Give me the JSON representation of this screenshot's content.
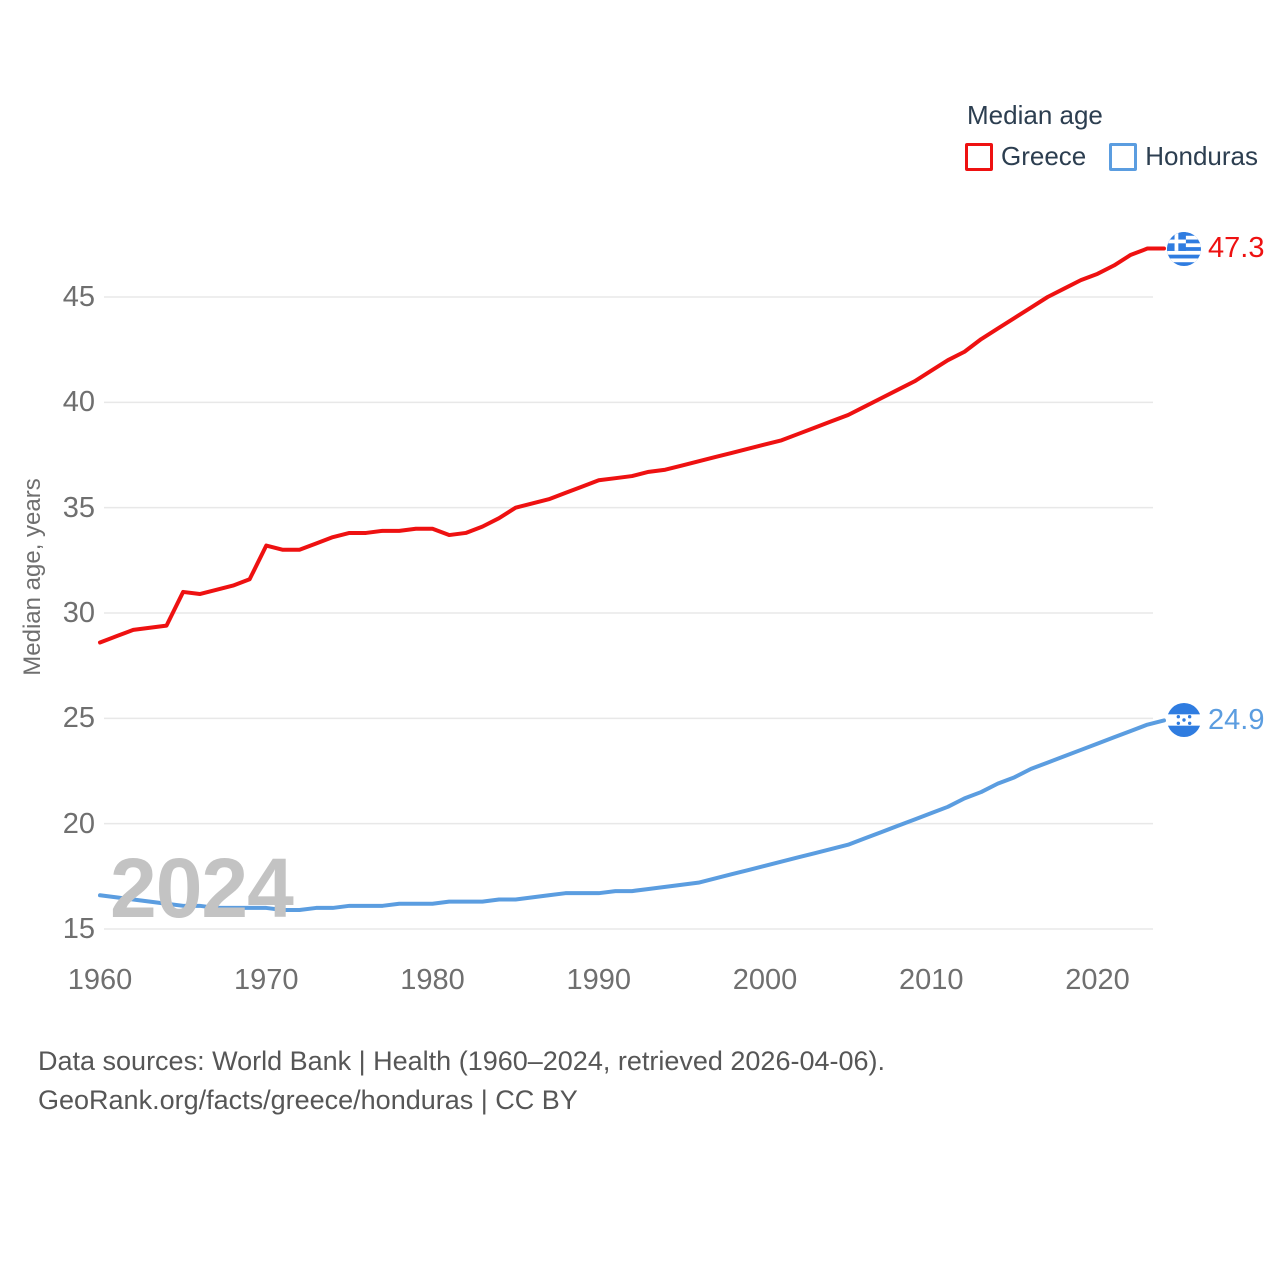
{
  "legend": {
    "title": "Median age",
    "items": [
      {
        "label": "Greece",
        "color": "#ee1111"
      },
      {
        "label": "Honduras",
        "color": "#5b9de0"
      }
    ]
  },
  "y_axis": {
    "title": "Median age, years",
    "ticks": [
      15,
      20,
      25,
      30,
      35,
      40,
      45
    ]
  },
  "x_axis": {
    "ticks": [
      1960,
      1970,
      1980,
      1990,
      2000,
      2010,
      2020
    ]
  },
  "watermark": "2024",
  "end_labels": [
    {
      "series": "Greece",
      "value": "47.3",
      "color": "#ee1111",
      "flag": "greece"
    },
    {
      "series": "Honduras",
      "value": "24.9",
      "color": "#5b9de0",
      "flag": "honduras"
    }
  ],
  "footer": {
    "line1": "Data sources: World Bank | Health (1960–2024, retrieved 2026-04-06).",
    "line2": "GeoRank.org/facts/greece/honduras | CC BY"
  },
  "chart_data": {
    "type": "line",
    "title": "Median age",
    "xlabel": "",
    "ylabel": "Median age, years",
    "xlim": [
      1960,
      2024
    ],
    "ylim": [
      15,
      47.5
    ],
    "grid": "horizontal",
    "legend_position": "top-right",
    "x": [
      1960,
      1961,
      1962,
      1963,
      1964,
      1965,
      1966,
      1967,
      1968,
      1969,
      1970,
      1971,
      1972,
      1973,
      1974,
      1975,
      1976,
      1977,
      1978,
      1979,
      1980,
      1981,
      1982,
      1983,
      1984,
      1985,
      1986,
      1987,
      1988,
      1989,
      1990,
      1991,
      1992,
      1993,
      1994,
      1995,
      1996,
      1997,
      1998,
      1999,
      2000,
      2001,
      2002,
      2003,
      2004,
      2005,
      2006,
      2007,
      2008,
      2009,
      2010,
      2011,
      2012,
      2013,
      2014,
      2015,
      2016,
      2017,
      2018,
      2019,
      2020,
      2021,
      2022,
      2023,
      2024
    ],
    "series": [
      {
        "name": "Greece",
        "color": "#ee1111",
        "values": [
          28.6,
          28.9,
          29.2,
          29.3,
          29.4,
          31.0,
          30.9,
          31.1,
          31.3,
          31.6,
          33.2,
          33.0,
          33.0,
          33.3,
          33.6,
          33.8,
          33.8,
          33.9,
          33.9,
          34.0,
          34.0,
          33.7,
          33.8,
          34.1,
          34.5,
          35.0,
          35.2,
          35.4,
          35.7,
          36.0,
          36.3,
          36.4,
          36.5,
          36.7,
          36.8,
          37.0,
          37.2,
          37.4,
          37.6,
          37.8,
          38.0,
          38.2,
          38.5,
          38.8,
          39.1,
          39.4,
          39.8,
          40.2,
          40.6,
          41.0,
          41.5,
          42.0,
          42.4,
          43.0,
          43.5,
          44.0,
          44.5,
          45.0,
          45.4,
          45.8,
          46.1,
          46.5,
          47.0,
          47.3,
          47.3
        ]
      },
      {
        "name": "Honduras",
        "color": "#5b9de0",
        "values": [
          16.6,
          16.5,
          16.4,
          16.3,
          16.2,
          16.1,
          16.1,
          16.0,
          16.0,
          16.0,
          16.0,
          15.9,
          15.9,
          16.0,
          16.0,
          16.1,
          16.1,
          16.1,
          16.2,
          16.2,
          16.2,
          16.3,
          16.3,
          16.3,
          16.4,
          16.4,
          16.5,
          16.6,
          16.7,
          16.7,
          16.7,
          16.8,
          16.8,
          16.9,
          17.0,
          17.1,
          17.2,
          17.4,
          17.6,
          17.8,
          18.0,
          18.2,
          18.4,
          18.6,
          18.8,
          19.0,
          19.3,
          19.6,
          19.9,
          20.2,
          20.5,
          20.8,
          21.2,
          21.5,
          21.9,
          22.2,
          22.6,
          22.9,
          23.2,
          23.5,
          23.8,
          24.1,
          24.4,
          24.7,
          24.9
        ]
      }
    ]
  }
}
